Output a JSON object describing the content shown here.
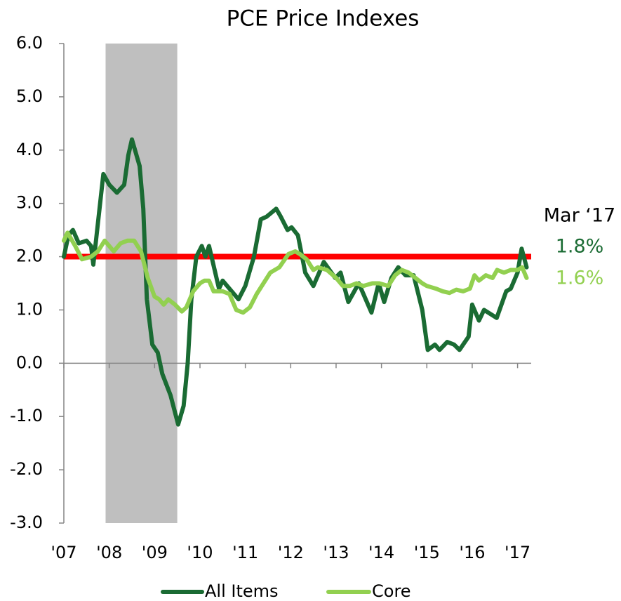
{
  "chart_data": {
    "type": "line",
    "title": "PCE Price Indexes",
    "xlim": [
      2007,
      2017.3
    ],
    "xticks": [
      {
        "value": 2007,
        "label": "'07"
      },
      {
        "value": 2008,
        "label": "'08"
      },
      {
        "value": 2009,
        "label": "'09"
      },
      {
        "value": 2010,
        "label": "'10"
      },
      {
        "value": 2011,
        "label": "'11"
      },
      {
        "value": 2012,
        "label": "'12"
      },
      {
        "value": 2013,
        "label": "'13"
      },
      {
        "value": 2014,
        "label": "'14"
      },
      {
        "value": 2015,
        "label": "'15"
      },
      {
        "value": 2016,
        "label": "'16"
      },
      {
        "value": 2017,
        "label": "'17"
      }
    ],
    "ylim": [
      -3,
      6
    ],
    "yticks": [
      {
        "value": -3,
        "label": "-3.0"
      },
      {
        "value": -2,
        "label": "-2.0"
      },
      {
        "value": -1,
        "label": "-1.0"
      },
      {
        "value": 0,
        "label": "0.0"
      },
      {
        "value": 1,
        "label": "1.0"
      },
      {
        "value": 2,
        "label": "2.0"
      },
      {
        "value": 3,
        "label": "3.0"
      },
      {
        "value": 4,
        "label": "4.0"
      },
      {
        "value": 5,
        "label": "5.0"
      },
      {
        "value": 6,
        "label": "6.0"
      }
    ],
    "recession": [
      2007.92,
      2009.5
    ],
    "recession_color": "#bfbfbf",
    "reference_line": 2,
    "reference_color": "#ff0000",
    "annotation": "Mar ‘17",
    "series": [
      {
        "name": "All Items",
        "color": "#1a6b33",
        "end_label": "1.8%",
        "x": [
          2007.0,
          2007.1,
          2007.2,
          2007.33,
          2007.5,
          2007.6,
          2007.65,
          2007.87,
          2008.0,
          2008.17,
          2008.33,
          2008.42,
          2008.5,
          2008.67,
          2008.75,
          2008.83,
          2008.95,
          2009.07,
          2009.17,
          2009.35,
          2009.52,
          2009.64,
          2009.73,
          2009.81,
          2009.92,
          2010.04,
          2010.12,
          2010.2,
          2010.42,
          2010.5,
          2010.7,
          2010.85,
          2011.0,
          2011.19,
          2011.34,
          2011.47,
          2011.68,
          2011.78,
          2011.93,
          2012.02,
          2012.16,
          2012.32,
          2012.5,
          2012.73,
          2012.98,
          2013.1,
          2013.27,
          2013.5,
          2013.78,
          2013.94,
          2014.06,
          2014.22,
          2014.37,
          2014.53,
          2014.71,
          2014.9,
          2015.02,
          2015.18,
          2015.28,
          2015.45,
          2015.6,
          2015.72,
          2015.92,
          2016.0,
          2016.15,
          2016.26,
          2016.54,
          2016.75,
          2016.85,
          2017.0,
          2017.09,
          2017.2
        ],
        "values": [
          2.0,
          2.4,
          2.5,
          2.25,
          2.3,
          2.2,
          1.85,
          3.55,
          3.35,
          3.2,
          3.35,
          3.9,
          4.2,
          3.7,
          2.9,
          1.2,
          0.35,
          0.2,
          -0.2,
          -0.6,
          -1.15,
          -0.8,
          0.0,
          1.2,
          2.0,
          2.2,
          2.0,
          2.2,
          1.4,
          1.55,
          1.35,
          1.2,
          1.45,
          2.0,
          2.7,
          2.75,
          2.9,
          2.75,
          2.5,
          2.55,
          2.4,
          1.7,
          1.45,
          1.9,
          1.6,
          1.7,
          1.15,
          1.5,
          0.95,
          1.5,
          1.15,
          1.6,
          1.8,
          1.65,
          1.65,
          1.0,
          0.25,
          0.35,
          0.25,
          0.4,
          0.35,
          0.25,
          0.5,
          1.1,
          0.8,
          1.0,
          0.85,
          1.35,
          1.4,
          1.7,
          2.15,
          1.8
        ]
      },
      {
        "name": "Core",
        "color": "#92d050",
        "end_label": "1.6%",
        "x": [
          2007.0,
          2007.08,
          2007.25,
          2007.4,
          2007.6,
          2007.75,
          2007.9,
          2008.0,
          2008.1,
          2008.25,
          2008.4,
          2008.55,
          2008.7,
          2008.85,
          2009.0,
          2009.1,
          2009.2,
          2009.3,
          2009.45,
          2009.6,
          2009.7,
          2009.85,
          2010.0,
          2010.1,
          2010.2,
          2010.3,
          2010.5,
          2010.65,
          2010.8,
          2010.95,
          2011.1,
          2011.25,
          2011.4,
          2011.55,
          2011.75,
          2011.95,
          2012.1,
          2012.2,
          2012.35,
          2012.5,
          2012.6,
          2012.8,
          2013.0,
          2013.15,
          2013.3,
          2013.45,
          2013.6,
          2013.8,
          2013.95,
          2014.15,
          2014.3,
          2014.45,
          2014.6,
          2014.75,
          2014.9,
          2015.0,
          2015.2,
          2015.35,
          2015.5,
          2015.65,
          2015.8,
          2015.95,
          2016.05,
          2016.15,
          2016.3,
          2016.45,
          2016.55,
          2016.7,
          2016.85,
          2017.0,
          2017.1,
          2017.2
        ],
        "values": [
          2.3,
          2.45,
          2.2,
          1.95,
          2.0,
          2.1,
          2.3,
          2.2,
          2.1,
          2.25,
          2.3,
          2.3,
          2.1,
          1.6,
          1.25,
          1.2,
          1.1,
          1.2,
          1.1,
          0.97,
          1.05,
          1.35,
          1.5,
          1.55,
          1.55,
          1.35,
          1.35,
          1.3,
          1.0,
          0.95,
          1.05,
          1.3,
          1.5,
          1.7,
          1.8,
          2.05,
          2.1,
          2.05,
          1.95,
          1.75,
          1.8,
          1.75,
          1.6,
          1.45,
          1.45,
          1.5,
          1.45,
          1.5,
          1.5,
          1.45,
          1.65,
          1.75,
          1.7,
          1.6,
          1.5,
          1.45,
          1.4,
          1.35,
          1.32,
          1.38,
          1.35,
          1.4,
          1.65,
          1.55,
          1.65,
          1.6,
          1.75,
          1.7,
          1.75,
          1.75,
          1.8,
          1.6
        ]
      }
    ]
  }
}
